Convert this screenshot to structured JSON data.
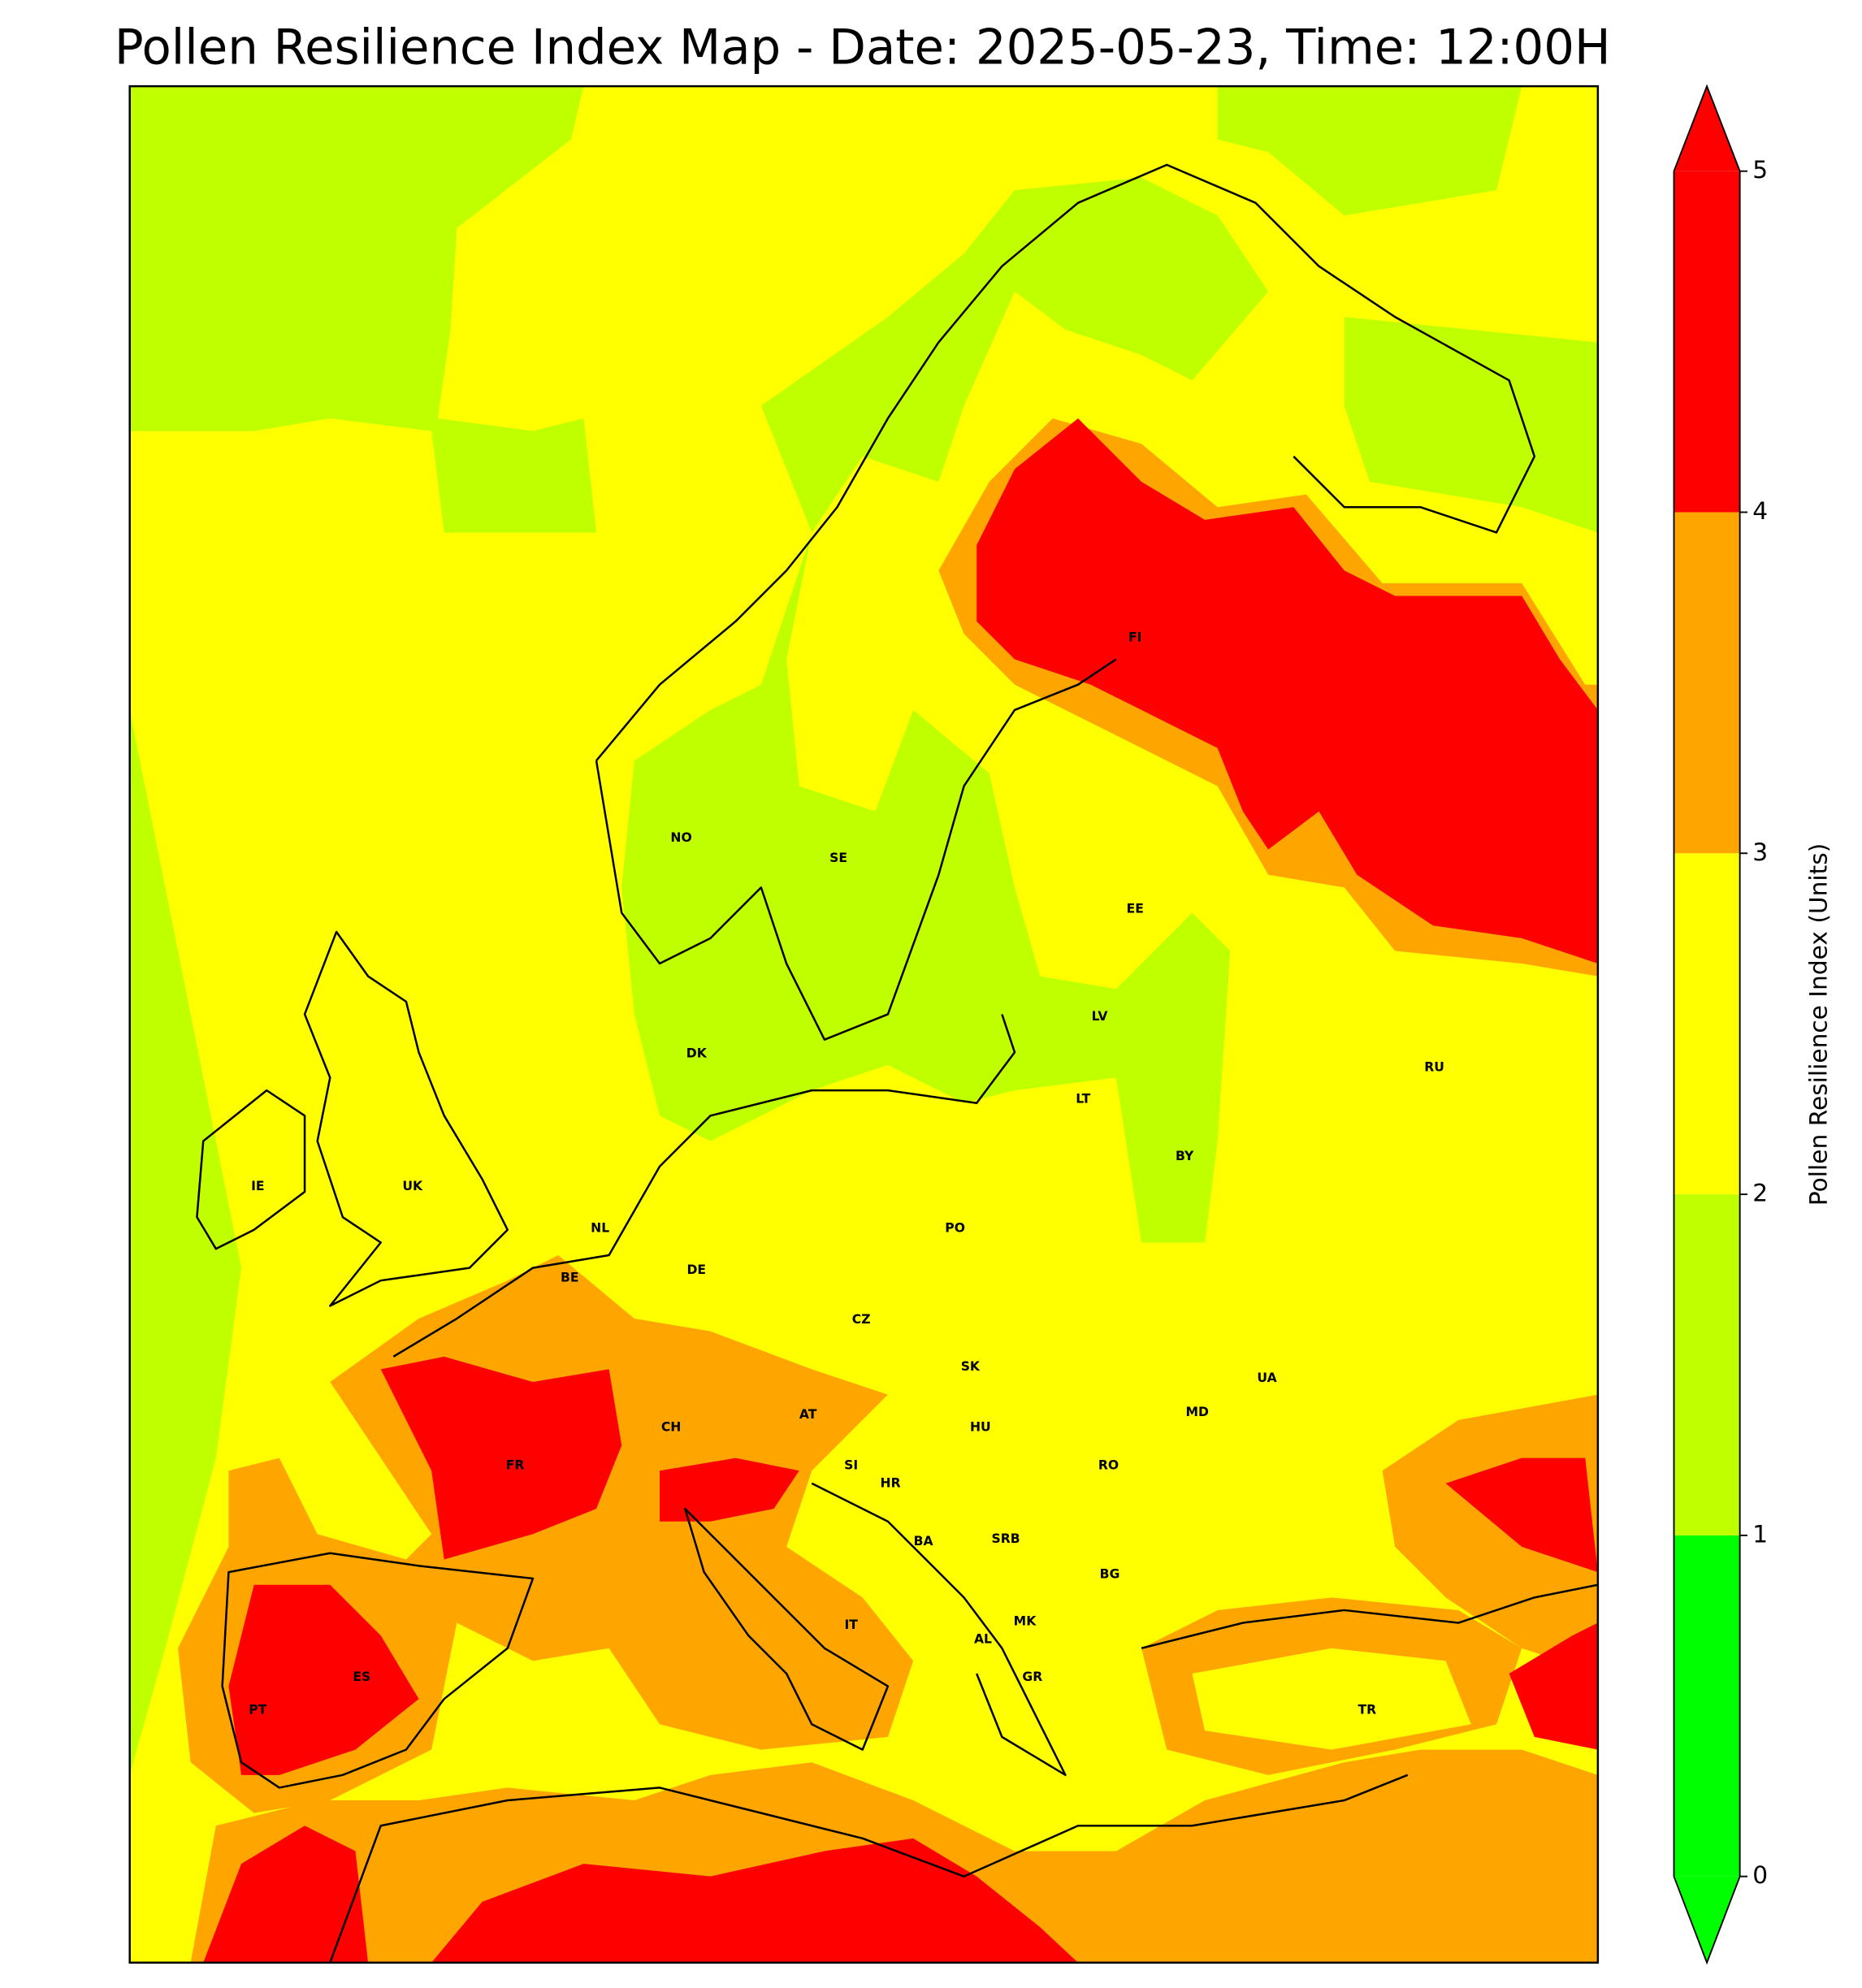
{
  "map": {
    "title": "Pollen Resilience Index Map - Date: 2025-05-23, Time: 12:00H",
    "countries": [
      "NO",
      "SE",
      "FI",
      "EE",
      "LV",
      "LT",
      "RU",
      "BY",
      "DK",
      "IE",
      "UK",
      "NL",
      "BE",
      "DE",
      "PO",
      "CZ",
      "SK",
      "UA",
      "AT",
      "CH",
      "HU",
      "MD",
      "FR",
      "SI",
      "HR",
      "RO",
      "BA",
      "SRB",
      "BG",
      "MK",
      "IT",
      "AL",
      "GR",
      "ES",
      "PT",
      "TR"
    ]
  },
  "colorbar": {
    "label": "Pollen Resilience Index (Units)",
    "lim": [
      0,
      5
    ],
    "ticks": [
      0,
      1,
      2,
      3,
      4,
      5
    ],
    "colors": [
      "#00ff00",
      "#bfff00",
      "#ffff00",
      "#ffa500",
      "#ff0000"
    ],
    "extend": "both"
  }
}
